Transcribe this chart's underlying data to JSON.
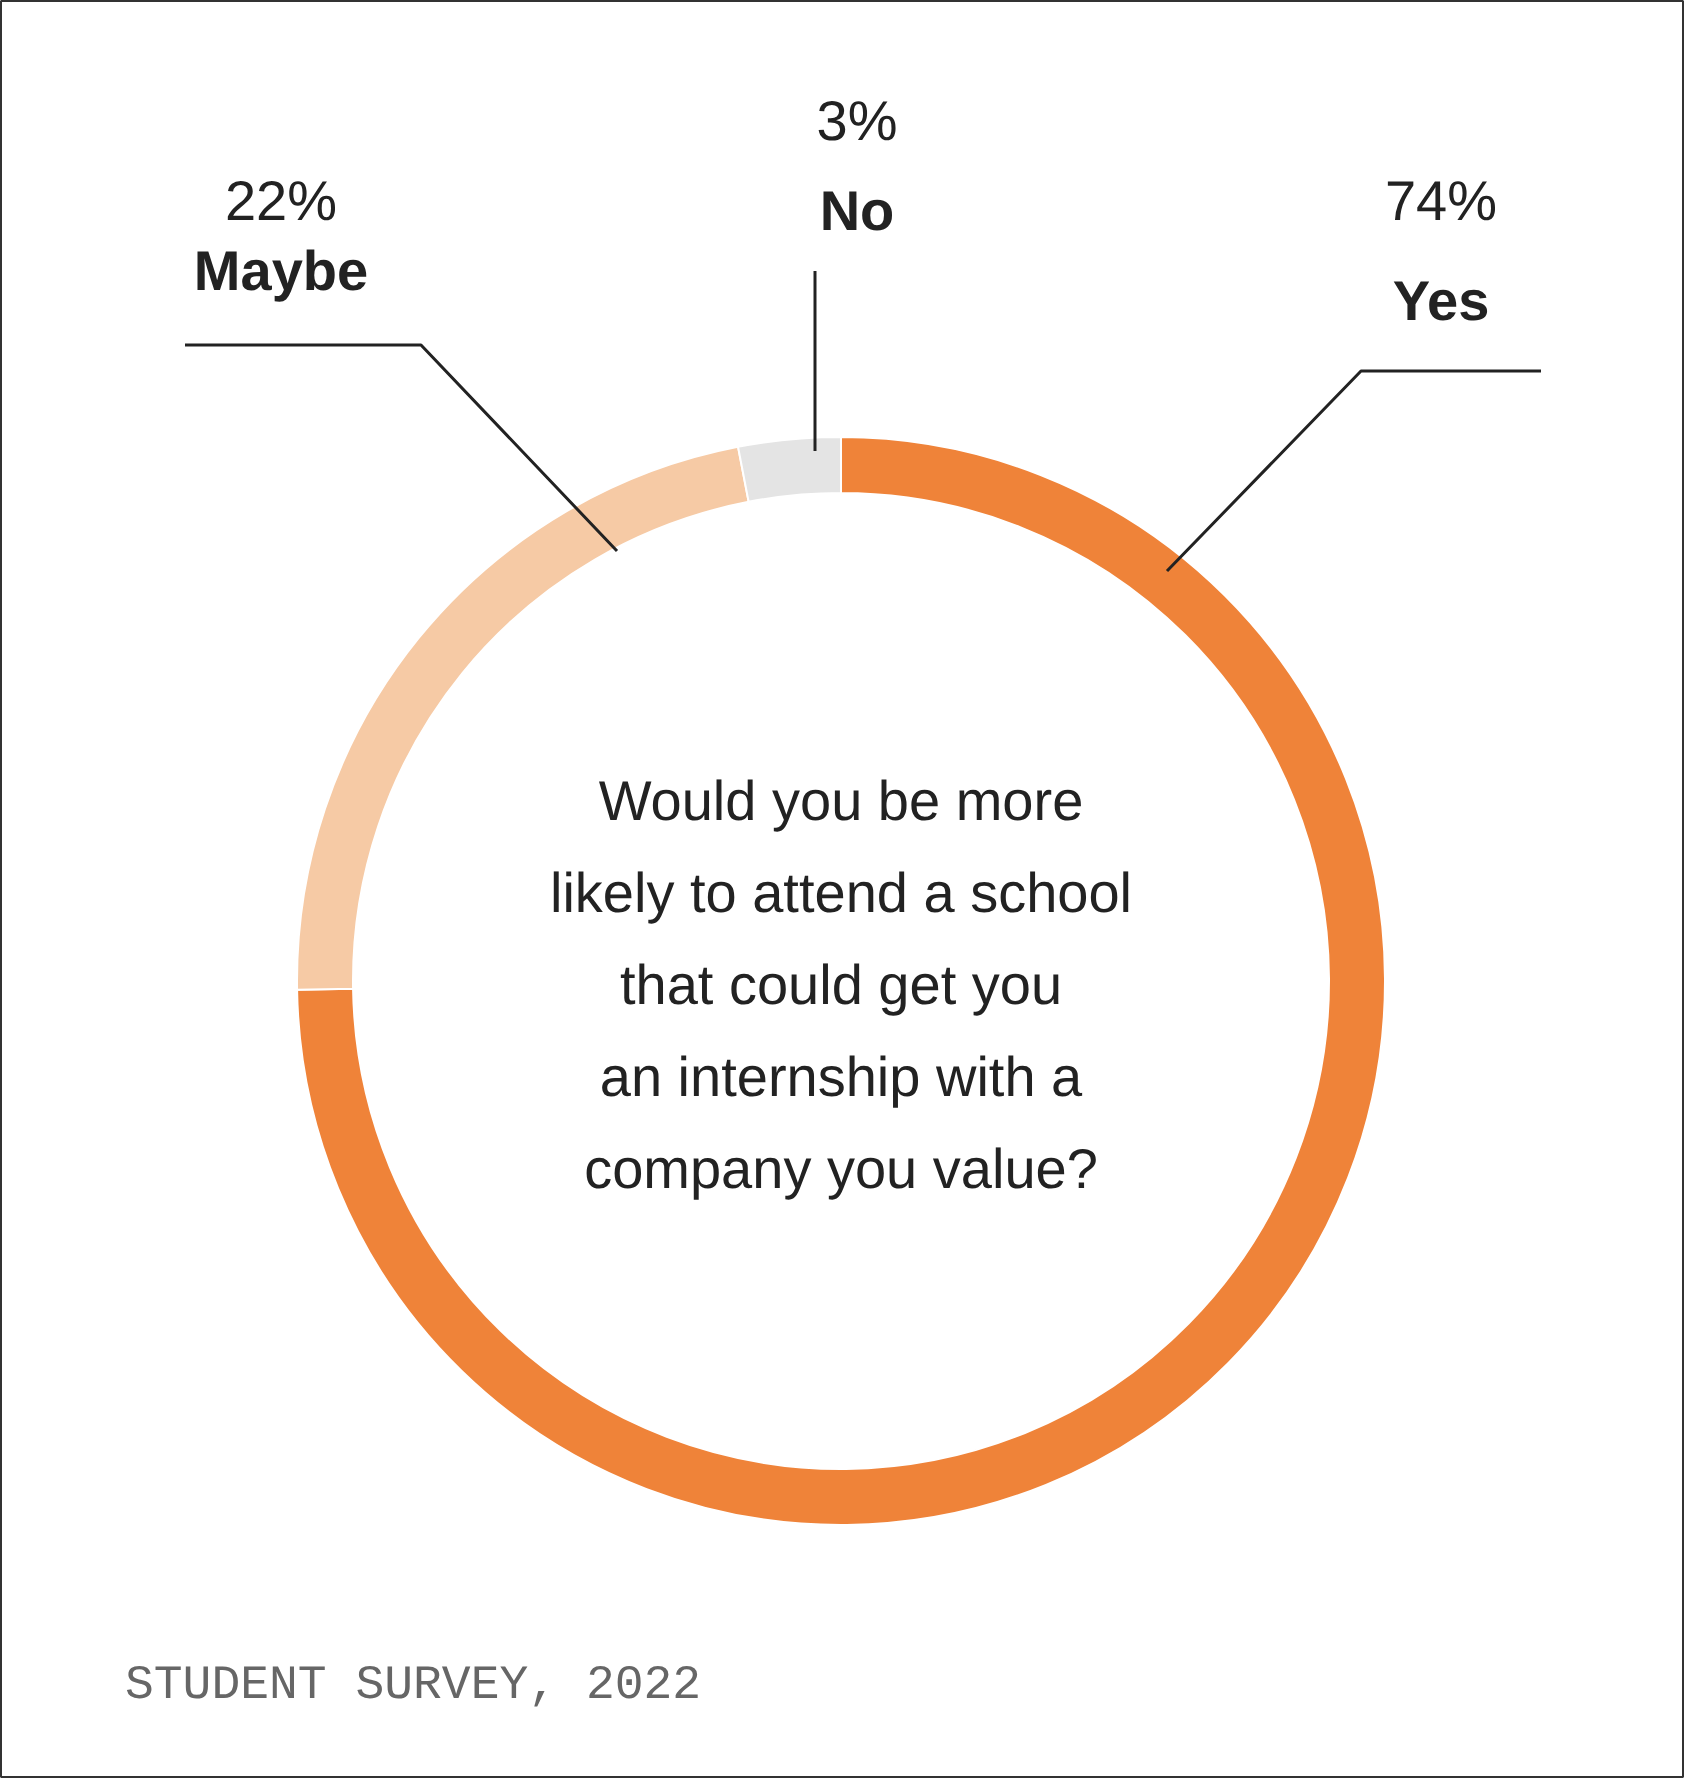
{
  "chart_data": {
    "type": "donut",
    "title": "Would you be more\nlikely to attend a school\nthat could get you\nan internship with a\ncompany you value?",
    "categories": [
      "Yes",
      "Maybe",
      "No"
    ],
    "values": [
      74,
      22,
      3
    ],
    "colors": [
      "#ef8339",
      "#f6caa5",
      "#e4e4e4"
    ],
    "value_labels": [
      "74%",
      "22%",
      "3%"
    ],
    "annotations": [
      "STUDENT SURVEY, 2022"
    ]
  }
}
